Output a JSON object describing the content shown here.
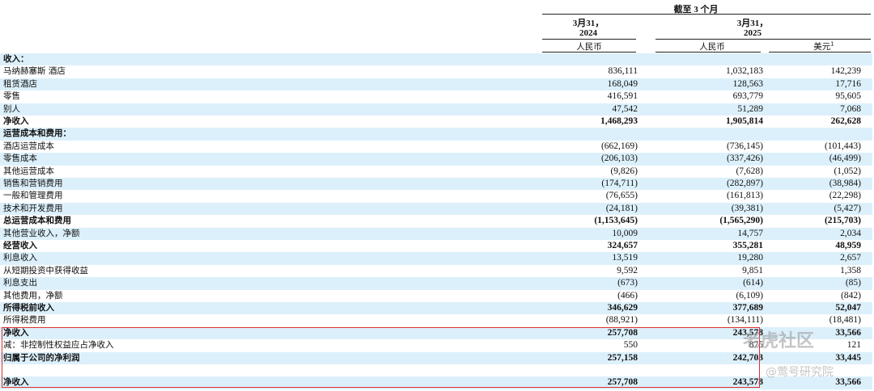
{
  "header": {
    "period": "截至 3 个月",
    "columns": [
      {
        "date": "3月31，",
        "year": "2024",
        "currency": "人民币"
      },
      {
        "date": "3月31，",
        "year": "2025",
        "currency": "人民币"
      },
      {
        "currency": "美元",
        "note": "1"
      }
    ]
  },
  "rows": [
    {
      "label": "收入：",
      "bold": true
    },
    {
      "label": "马纳赫塞斯 酒店",
      "values": [
        "836,111",
        "1,032,183",
        "142,239"
      ]
    },
    {
      "label": "租赁酒店",
      "values": [
        "168,049",
        "128,563",
        "17,716"
      ]
    },
    {
      "label": "零售",
      "values": [
        "416,591",
        "693,779",
        "95,605"
      ]
    },
    {
      "label": "别人",
      "values": [
        "47,542",
        "51,289",
        "7,068"
      ]
    },
    {
      "label": "净收入",
      "bold": true,
      "values": [
        "1,468,293",
        "1,905,814",
        "262,628"
      ]
    },
    {
      "label": "运营成本和费用：",
      "bold": true
    },
    {
      "label": "酒店运营成本",
      "values": [
        "(662,169)",
        "(736,145)",
        "(101,443)"
      ]
    },
    {
      "label": "零售成本",
      "values": [
        "(206,103)",
        "(337,426)",
        "(46,499)"
      ]
    },
    {
      "label": "其他运营成本",
      "values": [
        "(9,826)",
        "(7,628)",
        "(1,052)"
      ]
    },
    {
      "label": "销售和营销费用",
      "values": [
        "(174,711)",
        "(282,897)",
        "(38,984)"
      ]
    },
    {
      "label": "一般和管理费用",
      "values": [
        "(76,655)",
        "(161,813)",
        "(22,298)"
      ]
    },
    {
      "label": "技术和开发费用",
      "values": [
        "(24,181)",
        "(39,381)",
        "(5,427)"
      ]
    },
    {
      "label": "总运营成本和费用",
      "bold": true,
      "values": [
        "(1,153,645)",
        "(1,565,290)",
        "(215,703)"
      ]
    },
    {
      "label": "其他营业收入，净额",
      "values": [
        "10,009",
        "14,757",
        "2,034"
      ]
    },
    {
      "label": "经营收入",
      "bold": true,
      "values": [
        "324,657",
        "355,281",
        "48,959"
      ]
    },
    {
      "label": "利息收入",
      "values": [
        "13,519",
        "19,280",
        "2,657"
      ]
    },
    {
      "label": "从短期投资中获得收益",
      "values": [
        "9,592",
        "9,851",
        "1,358"
      ]
    },
    {
      "label": "利息支出",
      "values": [
        "(673)",
        "(614)",
        "(85)"
      ]
    },
    {
      "label": "其他费用，净额",
      "values": [
        "(466)",
        "(6,109)",
        "(842)"
      ]
    },
    {
      "label": "所得税前收入",
      "bold": true,
      "values": [
        "346,629",
        "377,689",
        "52,047"
      ]
    },
    {
      "label": "所得税费用",
      "values": [
        "(88,921)",
        "(134,111)",
        "(18,481)"
      ]
    },
    {
      "label": "净收入",
      "bold": true,
      "values": [
        "257,708",
        "243,578",
        "33,566"
      ]
    },
    {
      "label": "减：非控制性权益应占净收入",
      "values": [
        "550",
        "875",
        "121"
      ]
    },
    {
      "label": "归属于公司的净利润",
      "bold": true,
      "values": [
        "257,158",
        "242,703",
        "33,445"
      ]
    },
    {
      "label": "净收入",
      "bold": true,
      "values": [
        "257,708",
        "243,578",
        "33,566"
      ]
    }
  ],
  "watermark": {
    "brand": "老虎社区",
    "author": "@莺号研究院"
  }
}
